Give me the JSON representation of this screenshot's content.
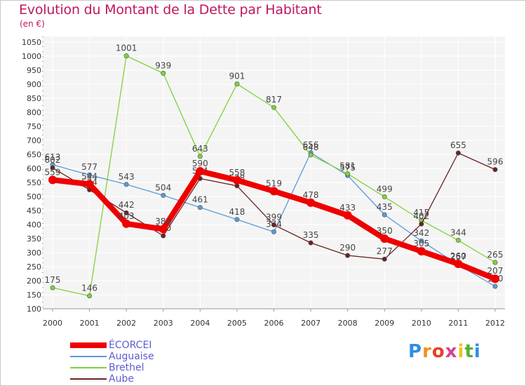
{
  "title": "Evolution du Montant de la Dette par Habitant",
  "subtitle": "(en €)",
  "logo": {
    "letters": [
      "P",
      "r",
      "o",
      "x",
      "i",
      "t",
      "i"
    ],
    "colors": [
      "#2f8fe0",
      "#f09020",
      "#e8402a",
      "#d84090",
      "#f0c020",
      "#58b030",
      "#2f8fe0"
    ]
  },
  "chart_data": {
    "type": "line",
    "x": [
      "2000",
      "2001",
      "2002",
      "2003",
      "2004",
      "2005",
      "2006",
      "2007",
      "2008",
      "2009",
      "2010",
      "2011",
      "2012"
    ],
    "ylim": [
      100,
      1050
    ],
    "yticks": [
      100,
      150,
      200,
      250,
      300,
      350,
      400,
      450,
      500,
      550,
      600,
      650,
      700,
      750,
      800,
      850,
      900,
      950,
      1000,
      1050
    ],
    "grid": true,
    "legend_position": "bottom-left",
    "series": [
      {
        "name": "Auguaise",
        "color": "#5b9bd5",
        "values": [
          613,
          577,
          543,
          504,
          461,
          418,
          374,
          656,
          575,
          435,
          342,
          257,
          180
        ]
      },
      {
        "name": "Brethel",
        "color": "#7fd23a",
        "values": [
          175,
          146,
          1001,
          939,
          643,
          901,
          817,
          648,
          581,
          499,
          415,
          344,
          265
        ]
      },
      {
        "name": "Aube",
        "color": "#6b2222",
        "values": [
          602,
          524,
          442,
          360,
          564,
          538,
          399,
          335,
          290,
          277,
          402,
          655,
          596
        ]
      },
      {
        "name": "ÉCORCEI",
        "color": "#ee0000",
        "values": [
          559,
          544,
          403,
          384,
          590,
          558,
          519,
          478,
          433,
          350,
          305,
          260,
          207
        ]
      }
    ]
  }
}
